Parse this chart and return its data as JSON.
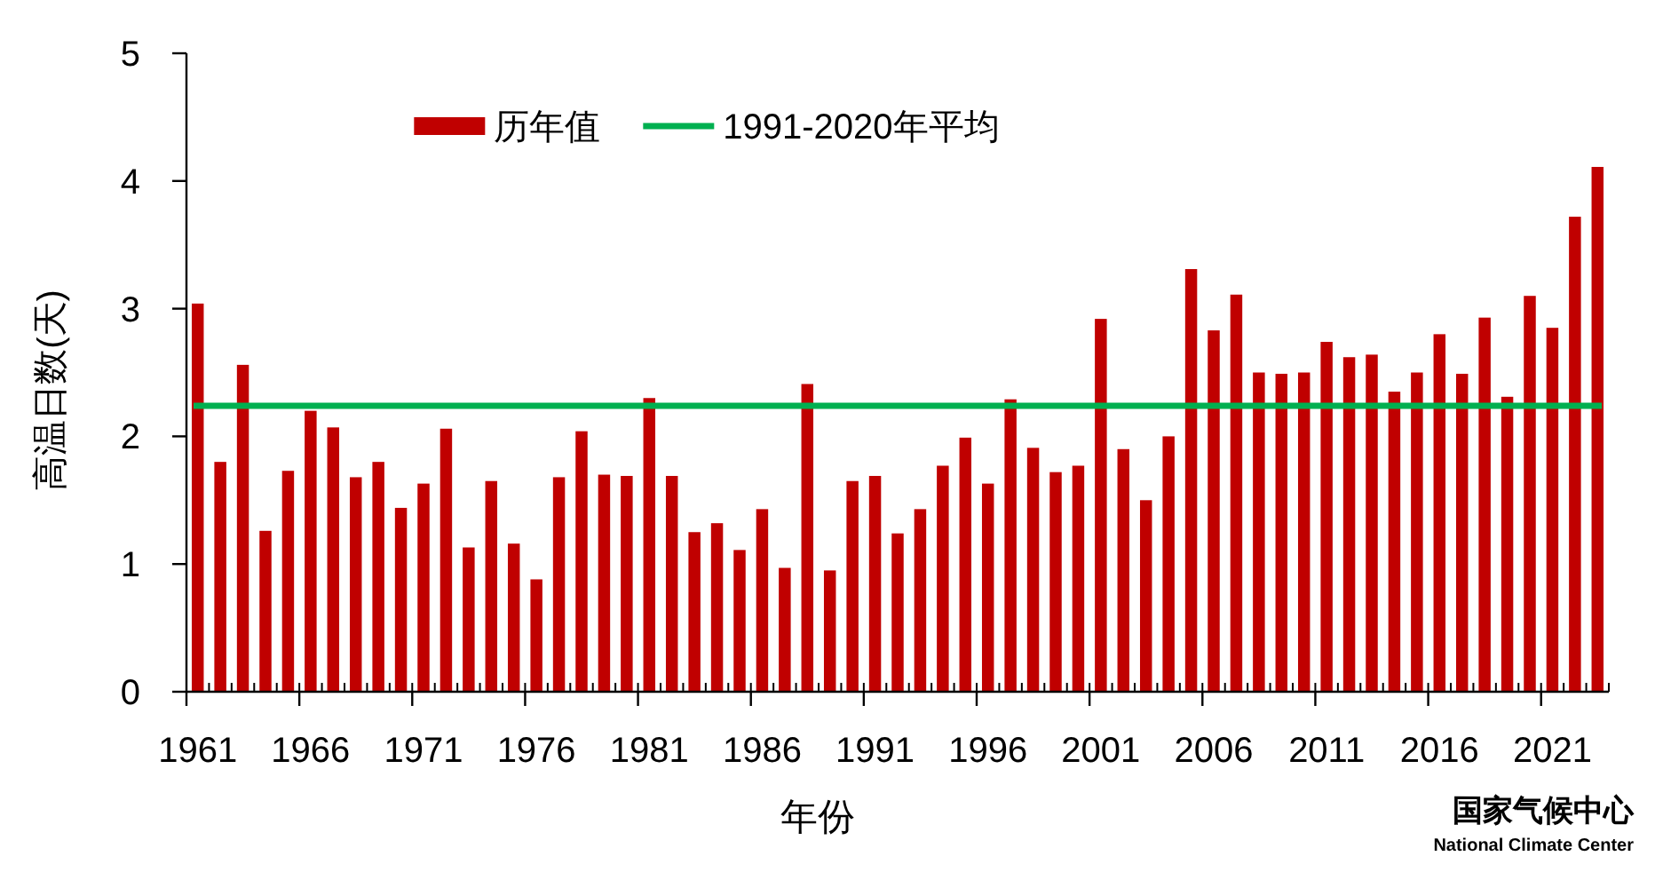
{
  "chart_data": {
    "type": "bar",
    "xlabel": "年份",
    "ylabel": "高温日数(天)",
    "categories": [
      "1961",
      null,
      null,
      null,
      null,
      "1966",
      null,
      null,
      null,
      null,
      "1971",
      null,
      null,
      null,
      null,
      "1976",
      null,
      null,
      null,
      null,
      "1981",
      null,
      null,
      null,
      null,
      "1986",
      null,
      null,
      null,
      null,
      "1991",
      null,
      null,
      null,
      null,
      "1996",
      null,
      null,
      null,
      null,
      "2001",
      null,
      null,
      null,
      null,
      "2006",
      null,
      null,
      null,
      null,
      "2011",
      null,
      null,
      null,
      null,
      "2016",
      null,
      null,
      null,
      null,
      "2021",
      null,
      null
    ],
    "series": [
      {
        "name": "历年值",
        "color": "#c00000",
        "values": [
          3.04,
          1.8,
          2.56,
          1.26,
          1.73,
          2.2,
          2.07,
          1.68,
          1.8,
          1.44,
          1.63,
          2.06,
          1.13,
          1.65,
          1.16,
          0.88,
          1.68,
          2.04,
          1.7,
          1.69,
          2.3,
          1.69,
          1.25,
          1.32,
          1.11,
          1.43,
          0.97,
          2.41,
          0.95,
          1.65,
          1.69,
          1.24,
          1.43,
          1.77,
          1.99,
          1.63,
          2.29,
          1.91,
          1.72,
          1.77,
          2.92,
          1.9,
          1.5,
          2.0,
          3.31,
          2.83,
          3.11,
          2.5,
          2.49,
          2.5,
          2.74,
          2.62,
          2.64,
          2.35,
          2.5,
          2.8,
          2.49,
          2.93,
          2.31,
          3.1,
          2.85,
          3.72,
          4.11
        ]
      }
    ],
    "ylim": [
      0,
      5
    ],
    "yticks": [
      0,
      1,
      2,
      3,
      4,
      5
    ],
    "ref_lines": [
      {
        "axis": "y",
        "value": 2.24,
        "label": "1991-2020年平均",
        "color": "#00b050"
      }
    ],
    "legend": "top",
    "annotations": [
      "国家气候中心",
      "National Climate Center"
    ]
  }
}
